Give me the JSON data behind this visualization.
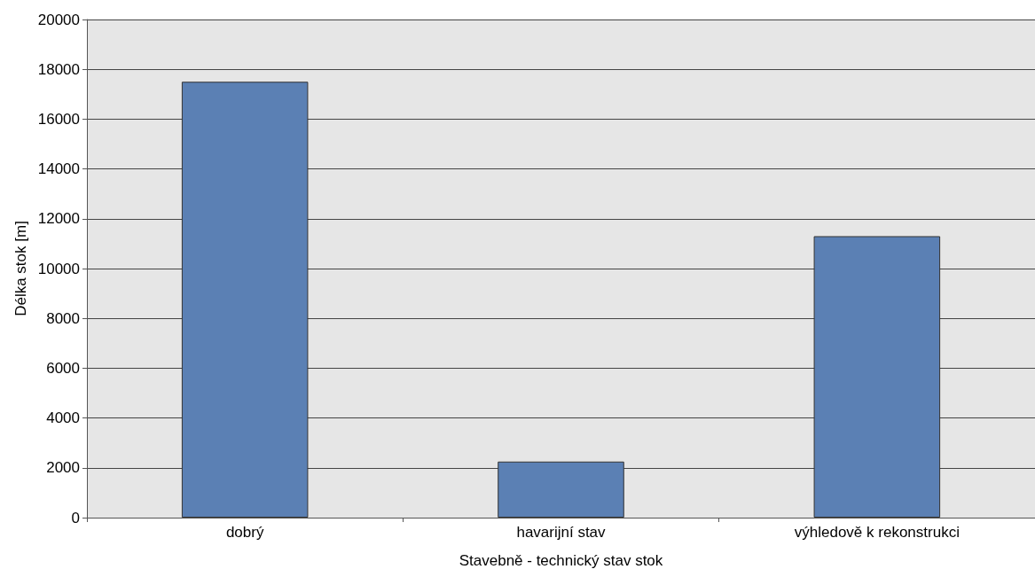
{
  "chart_data": {
    "type": "bar",
    "xlabel": "Stavebně - technický stav stok",
    "ylabel": "Délka stok [m]",
    "categories": [
      "dobrý",
      "havarijní stav",
      "výhledově k rekonstrukci"
    ],
    "values": [
      17500,
      2250,
      11300
    ],
    "color": "#5b80b4",
    "ylim": [
      0,
      20000
    ],
    "yticks": [
      0,
      2000,
      4000,
      6000,
      8000,
      10000,
      12000,
      14000,
      16000,
      18000,
      20000
    ],
    "grid": "y"
  }
}
